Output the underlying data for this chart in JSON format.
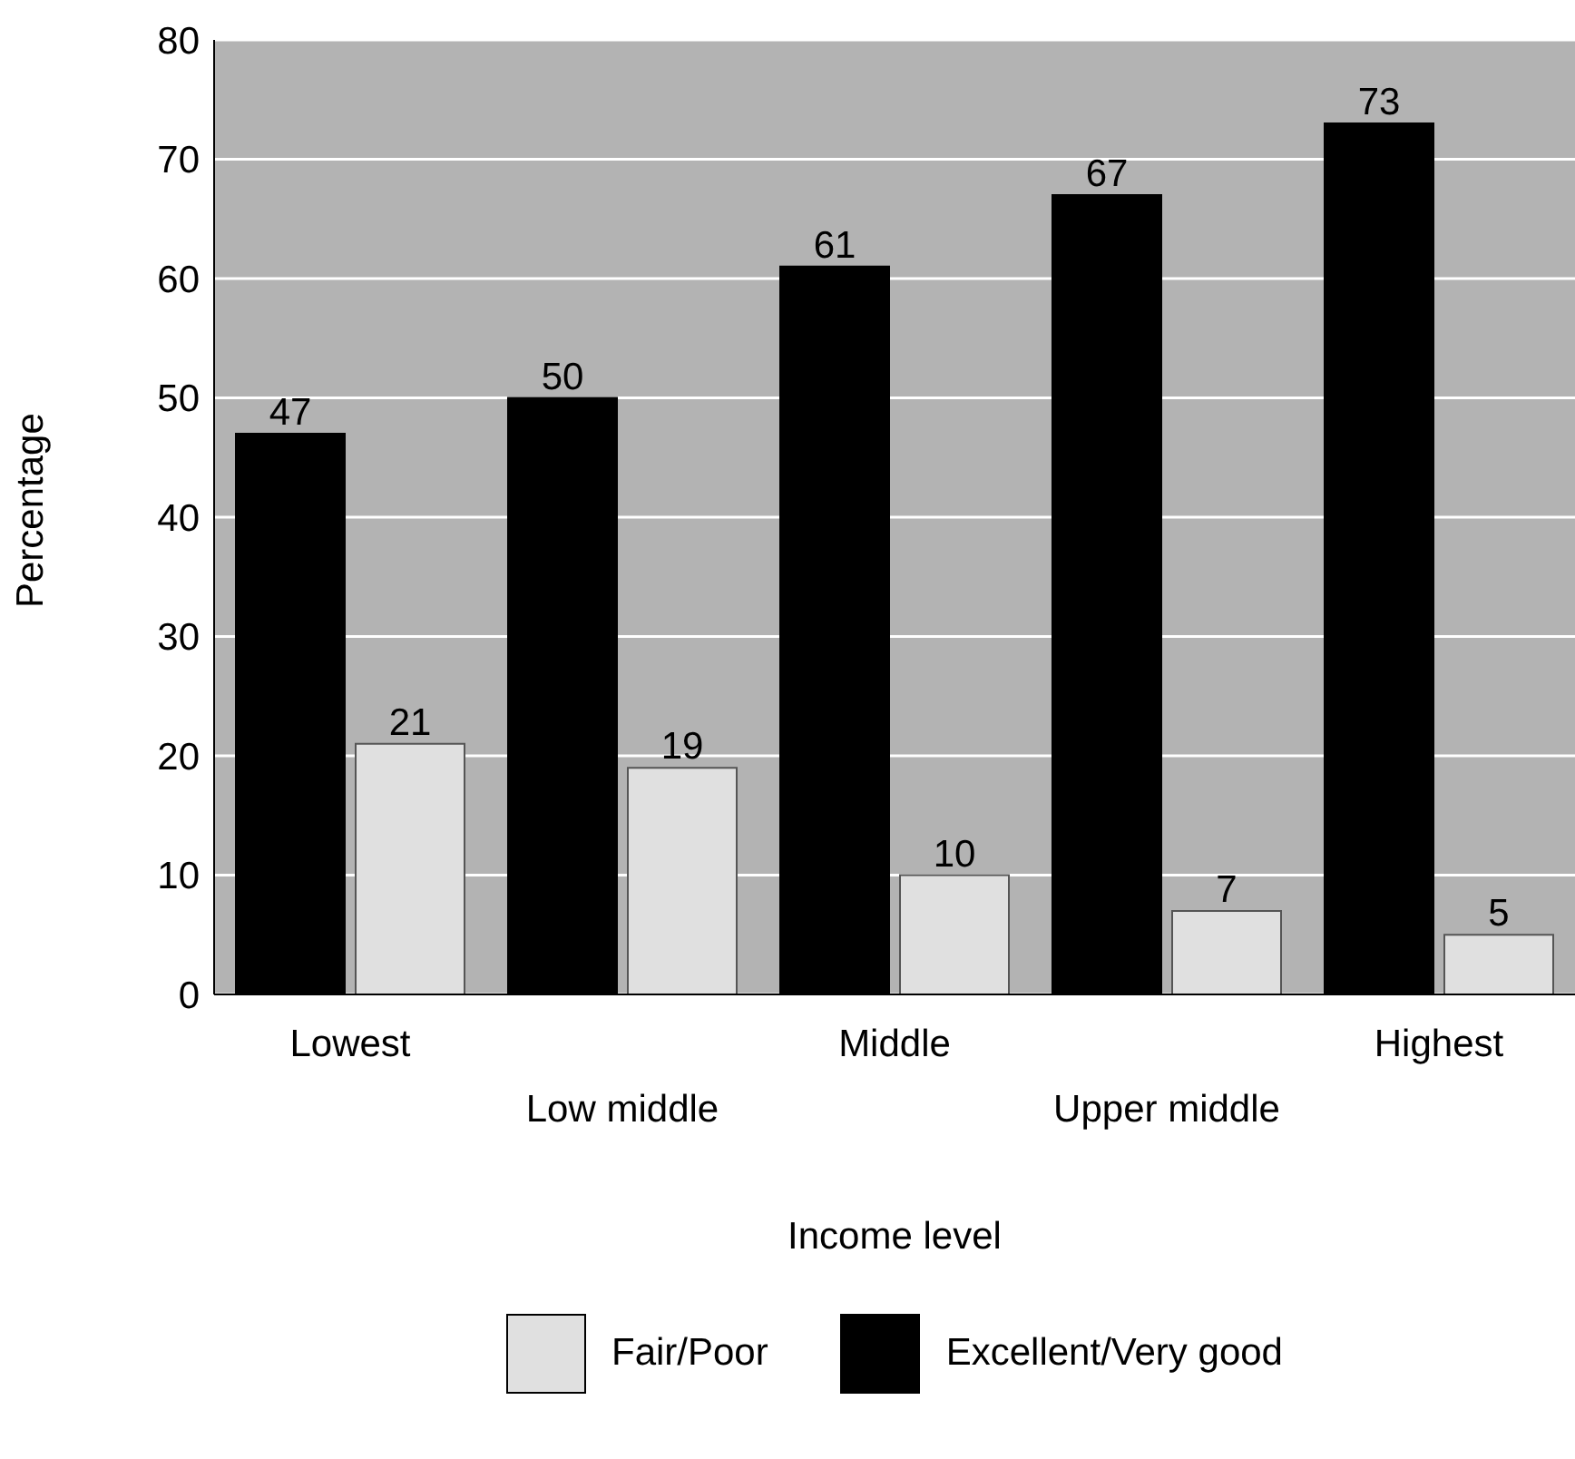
{
  "chart_data": {
    "type": "bar",
    "xlabel": "Income level",
    "ylabel": "Percentage",
    "categories": [
      "Lowest",
      "Low middle",
      "Middle",
      "Upper middle",
      "Highest"
    ],
    "series": [
      {
        "name": "Excellent/Very good",
        "color": "#000000",
        "values": [
          47,
          50,
          61,
          67,
          73
        ]
      },
      {
        "name": "Fair/Poor",
        "color": "#e0e0e0",
        "values": [
          21,
          19,
          10,
          7,
          5
        ]
      }
    ],
    "ylim": [
      0,
      80
    ],
    "yticks": [
      0,
      10,
      20,
      30,
      40,
      50,
      60,
      70,
      80
    ],
    "grid": "y",
    "legend": "bottom",
    "data_labels": true
  }
}
